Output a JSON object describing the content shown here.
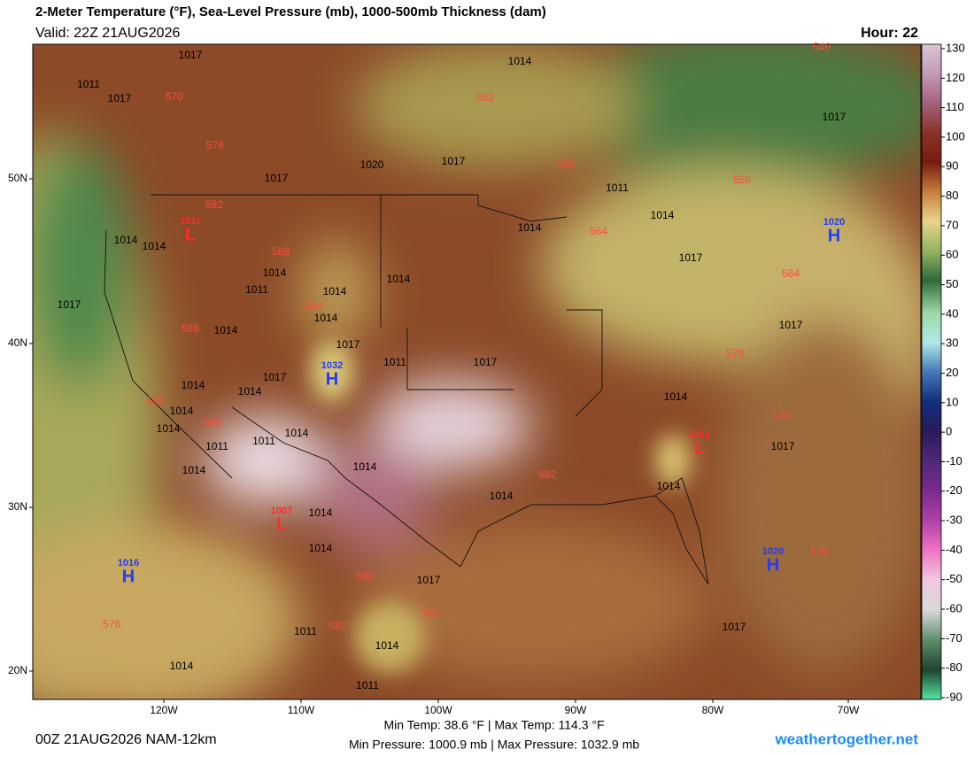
{
  "header": {
    "title": "2-Meter Temperature (°F), Sea-Level Pressure (mb), 1000-500mb Thickness (dam)",
    "valid": "Valid: 22Z 21AUG2026",
    "hour": "Hour: 22"
  },
  "colorbar": {
    "ticks": [
      130,
      120,
      110,
      100,
      90,
      80,
      70,
      60,
      50,
      40,
      30,
      20,
      10,
      0,
      -10,
      -20,
      -30,
      -40,
      -50,
      -60,
      -70,
      -80,
      -90
    ]
  },
  "map": {
    "lat_labels": [
      "50N",
      "40N",
      "30N",
      "20N"
    ],
    "lon_labels": [
      "120W",
      "110W",
      "100W",
      "90W",
      "80W",
      "70W"
    ]
  },
  "pressure_centers": [
    {
      "symbol": "L",
      "value": 1011
    },
    {
      "symbol": "H",
      "value": 1032
    },
    {
      "symbol": "L",
      "value": 1007
    },
    {
      "symbol": "H",
      "value": 1016
    },
    {
      "symbol": "L",
      "value": 1013
    },
    {
      "symbol": "H",
      "value": 1020
    },
    {
      "symbol": "H",
      "value": 1020
    }
  ],
  "isobar_labels": [
    1017,
    1011,
    1017,
    1014,
    1020,
    1017,
    1017,
    1011,
    1014,
    1014,
    1014,
    1014,
    1014,
    1011,
    1014,
    1014,
    1014,
    1017,
    1017,
    1017,
    1014,
    1017,
    1011,
    1017,
    1017,
    1014,
    1014,
    1014,
    1014,
    1014,
    1011,
    1014,
    1011,
    1014,
    1014,
    1014,
    1014,
    1017,
    1014,
    1014,
    1017,
    1017,
    1014,
    1011,
    1014,
    1011,
    1017
  ],
  "thickness_labels": [
    546,
    570,
    552,
    576,
    558,
    558,
    582,
    564,
    588,
    564,
    594,
    588,
    570,
    582,
    588,
    576,
    582,
    576,
    588,
    582,
    582,
    576
  ],
  "footer": {
    "run": "00Z 21AUG2026 NAM-12km",
    "temp_range": "Min Temp:  38.6 °F | Max Temp: 114.3 °F",
    "pressure_range": "Min Pressure: 1000.9 mb | Max Pressure: 1032.9 mb",
    "site": "weathertogether.net"
  }
}
